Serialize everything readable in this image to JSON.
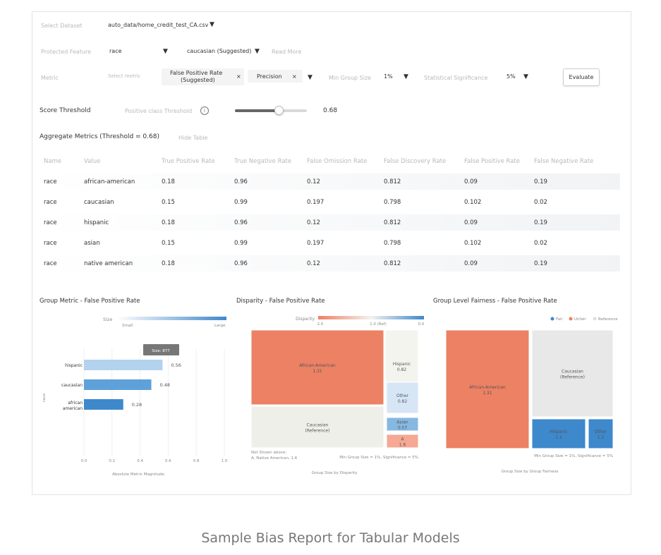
{
  "controls": {
    "dataset_label": "Select Dataset",
    "dataset_value": "auto_data/home_credit_test_CA.csv",
    "protected_label": "Protected Feature",
    "protected_value": "race",
    "reference_value": "caucasian (Suggested)",
    "read_more": "Read More",
    "metric_label": "Metric",
    "select_metric": "Select metric",
    "metric_chip_1": "False Positive Rate",
    "metric_chip_1b": "(Suggested)",
    "metric_chip_2": "Precision",
    "chip_close": "×",
    "min_group_label": "Min Group Size",
    "min_group_value": "1%",
    "significance_label": "Statistical Significance",
    "significance_value": "5%",
    "evaluate_label": "Evaluate",
    "score_threshold_label": "Score Threshold",
    "positive_class_label": "Positive class Threshold",
    "info_glyph": "i",
    "threshold_value": "0.68",
    "threshold_fraction": 0.68,
    "dropdown_glyph": "▼"
  },
  "aggregate": {
    "title": "Aggregate Metrics (Threshold = 0.68)",
    "hide_table": "Hide Table",
    "columns": [
      "Name",
      "Value",
      "True Positive Rate",
      "True Negative Rate",
      "False Omission Rate",
      "False Discovery Rate",
      "False Positive Rate",
      "False Negative Rate"
    ],
    "rows": [
      [
        "race",
        "african-american",
        "0.18",
        "0.96",
        "0.12",
        "0.812",
        "0.09",
        "0.19"
      ],
      [
        "race",
        "caucasian",
        "0.15",
        "0.99",
        "0.197",
        "0.798",
        "0.102",
        "0.02"
      ],
      [
        "race",
        "hispanic",
        "0.18",
        "0.96",
        "0.12",
        "0.812",
        "0.09",
        "0.19"
      ],
      [
        "race",
        "asian",
        "0.15",
        "0.99",
        "0.197",
        "0.798",
        "0.102",
        "0.02"
      ],
      [
        "race",
        "native american",
        "0.18",
        "0.96",
        "0.12",
        "0.812",
        "0.09",
        "0.19"
      ]
    ]
  },
  "group_metric": {
    "title": "Group Metric - False Positive Rate",
    "size_label": "Size",
    "small_label": "Small",
    "large_label": "Large",
    "tooltip": "Size: 877",
    "ylabel": "race",
    "xlabel": "Absolute Metric Magnitude",
    "ticks": [
      "0.0",
      "0.2",
      "0.4",
      "0.6",
      "0.8",
      "1.0"
    ],
    "bars": [
      {
        "label": "hispanic",
        "label2": "",
        "value": 0.56,
        "value_text": "0.56",
        "color": "#b3d2ee"
      },
      {
        "label": "caucasian",
        "label2": "",
        "value": 0.48,
        "value_text": "0.48",
        "color": "#5ea1da"
      },
      {
        "label": "african",
        "label2": "american",
        "value": 0.28,
        "value_text": "0.28",
        "color": "#3e88cc"
      }
    ]
  },
  "disparity": {
    "title": "Disparity - False Positive Rate",
    "legend_label": "Disparity",
    "legend_ticks": [
      "2.0",
      "1.0 (Ref)",
      "0.0"
    ],
    "note1": "Not Shown above:",
    "note2": "A, Native American, 1.6",
    "note3": "Min Group Size = 1%, Significance = 5%",
    "footer": "Group Size by Disparity",
    "cells": [
      {
        "name": "African-American",
        "value": "1.31",
        "color": "#ec8164"
      },
      {
        "name": "Caucasian",
        "value": "(Reference)",
        "color": "#efefe9"
      },
      {
        "name": "Hispanic",
        "value": "0.82",
        "color": "#f4f4ef"
      },
      {
        "name": "Other",
        "value": "0.82",
        "color": "#d6e6f5"
      },
      {
        "name": "Asian",
        "value": "0.57",
        "color": "#86b8e2"
      },
      {
        "name": "A",
        "value": "1.6",
        "color": "#f5a893"
      }
    ]
  },
  "fairness": {
    "title": "Group Level Fairness - False Positive Rate",
    "legend": [
      {
        "label": "Fair",
        "color": "#3e88cc"
      },
      {
        "label": "Unfair",
        "color": "#ec8164"
      },
      {
        "label": "Reference",
        "color": "#dedede"
      }
    ],
    "note": "Min Group Size = 1%, Significance = 5%",
    "footer": "Group Size by Group Fairness",
    "cells": [
      {
        "name": "African-American",
        "value": "1.31",
        "color": "#ec8164"
      },
      {
        "name": "Caucasian",
        "value": "(Reference)",
        "color": "#e8e8e8"
      },
      {
        "name": "Hispanic",
        "value": "1.1",
        "color": "#3e88cc"
      },
      {
        "name": "Other",
        "value": "1.1",
        "color": "#3e88cc"
      }
    ]
  },
  "caption": "Sample Bias Report for Tabular Models"
}
